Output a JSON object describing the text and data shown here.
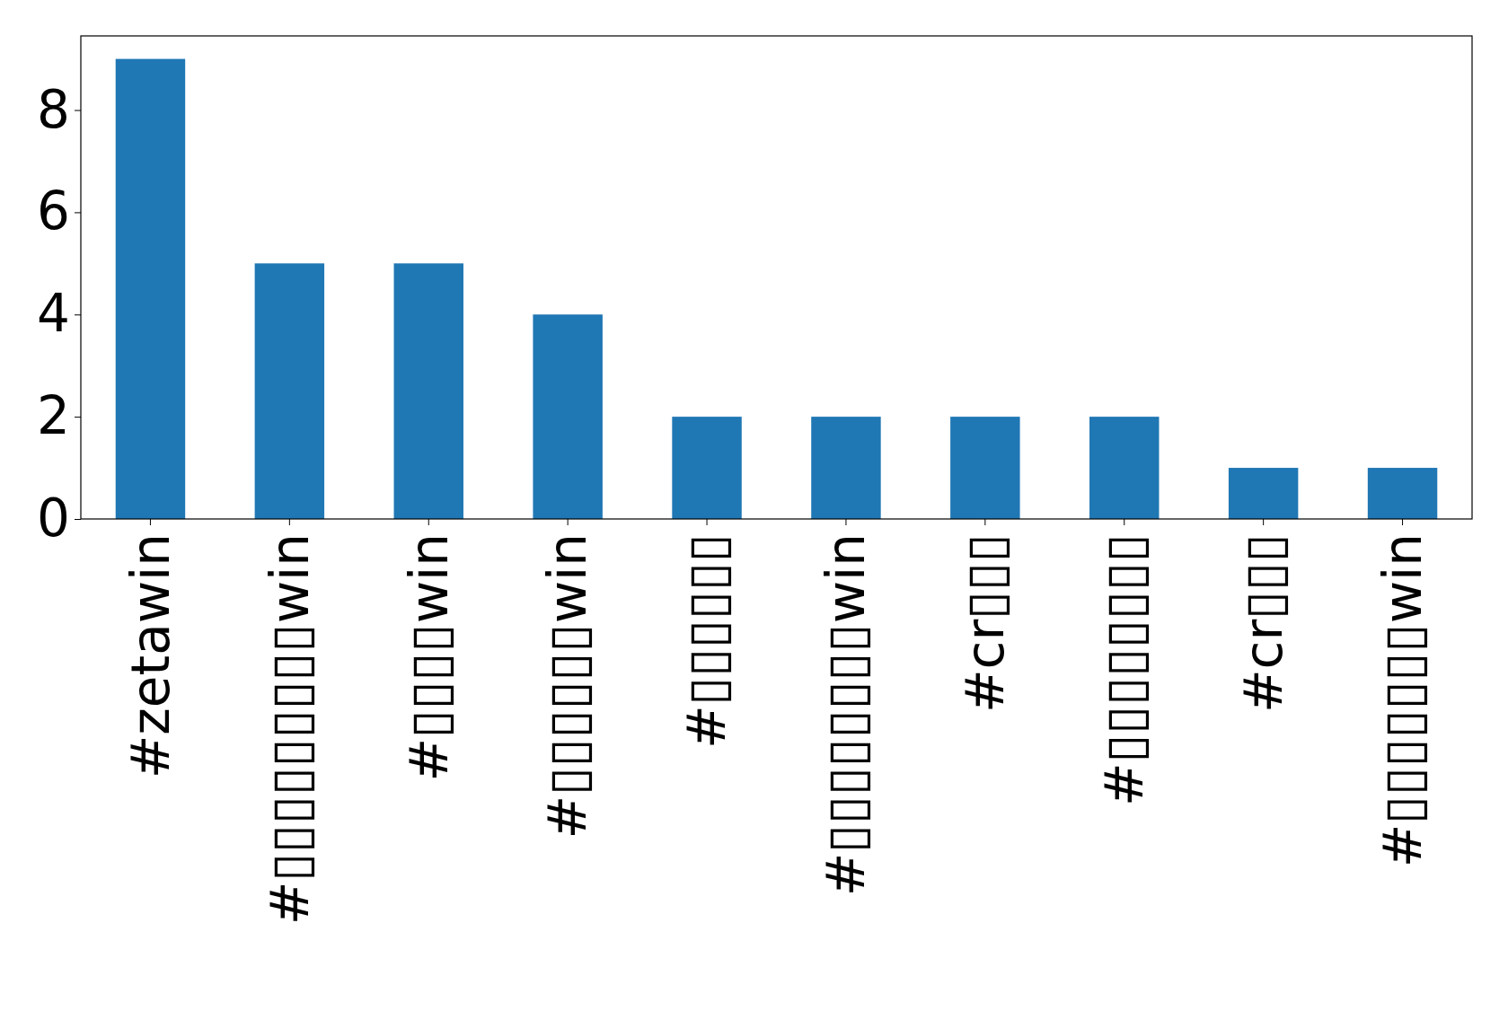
{
  "chart_data": {
    "type": "bar",
    "categories": [
      "#zetawin",
      "#▯▯▯▯▯▯▯▯▯win",
      "#▯▯▯▯win",
      "#▯▯▯▯▯▯win",
      "#▯▯▯▯▯▯",
      "#▯▯▯▯▯▯▯▯win",
      "#cr▯▯▯",
      "#▯▯▯▯▯▯▯▯",
      "#cr▯▯▯",
      "#▯▯▯▯▯▯▯win"
    ],
    "values": [
      9,
      5,
      5,
      4,
      2,
      2,
      2,
      2,
      1,
      1
    ],
    "color": "#1f77b4",
    "ylim": [
      0,
      9.45
    ],
    "yticks": [
      0,
      2,
      4,
      6,
      8
    ],
    "grid": false
  }
}
